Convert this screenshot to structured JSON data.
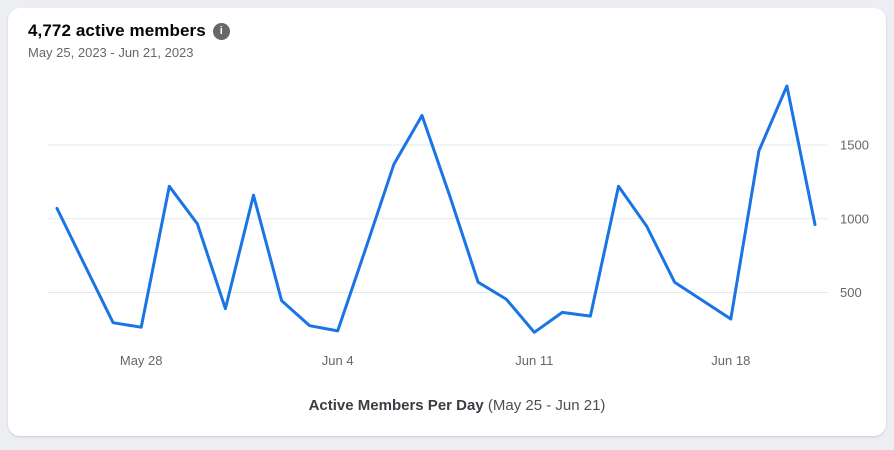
{
  "card": {
    "title": "4,772 active members",
    "subtitle": "May 25, 2023 - Jun 21, 2023",
    "info_icon_glyph": "i"
  },
  "caption": {
    "title": "Active Members Per Day",
    "range": "(May 25 - Jun 21)"
  },
  "chart_data": {
    "type": "line",
    "title": "Active Members Per Day (May 25 - Jun 21)",
    "series_name": "Active members per day",
    "x": [
      "May 25",
      "May 26",
      "May 27",
      "May 28",
      "May 29",
      "May 30",
      "May 31",
      "Jun 1",
      "Jun 2",
      "Jun 3",
      "Jun 4",
      "Jun 5",
      "Jun 6",
      "Jun 7",
      "Jun 8",
      "Jun 9",
      "Jun 10",
      "Jun 11",
      "Jun 12",
      "Jun 13",
      "Jun 14",
      "Jun 15",
      "Jun 16",
      "Jun 17",
      "Jun 18",
      "Jun 19",
      "Jun 20",
      "Jun 21"
    ],
    "values": [
      1070,
      680,
      295,
      265,
      1220,
      965,
      390,
      1160,
      445,
      275,
      240,
      800,
      1370,
      1700,
      1150,
      570,
      455,
      230,
      365,
      340,
      1220,
      950,
      570,
      445,
      320,
      1460,
      1900,
      960
    ],
    "x_tick_labels": [
      {
        "index": 3,
        "label": "May 28"
      },
      {
        "index": 10,
        "label": "Jun 4"
      },
      {
        "index": 17,
        "label": "Jun 11"
      },
      {
        "index": 24,
        "label": "Jun 18"
      }
    ],
    "y_ticks": [
      500,
      1000,
      1500
    ],
    "ylim": [
      0,
      2000
    ],
    "grid": true,
    "legend": "none",
    "line_color": "#1b74e4",
    "grid_color": "#e7e9ec",
    "tick_color": "#65676b"
  }
}
